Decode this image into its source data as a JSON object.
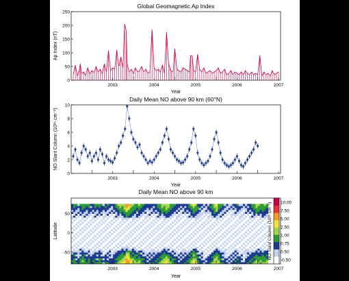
{
  "chart_data": [
    {
      "type": "line",
      "title": "Global Geomagnetic Ap Index",
      "xlabel": "Year",
      "ylabel": "Ap Index (nT)",
      "ylim": [
        0,
        250
      ],
      "xlim": [
        2002.5,
        2007.55
      ],
      "x_ticks": [
        "2003",
        "2004",
        "2005",
        "2006",
        "2007"
      ],
      "y_ticks": [
        "0",
        "50",
        "100",
        "150",
        "200",
        "250"
      ],
      "color": "#c8004a",
      "series": [
        {
          "x": [
            2002.55,
            2002.6,
            2002.65,
            2002.7,
            2002.72,
            2002.75,
            2002.8,
            2002.85,
            2002.9,
            2002.95,
            2003.0,
            2003.05,
            2003.1,
            2003.15,
            2003.2,
            2003.25,
            2003.3,
            2003.35,
            2003.4,
            2003.45,
            2003.5,
            2003.55,
            2003.6,
            2003.65,
            2003.7,
            2003.75,
            2003.79,
            2003.83,
            2003.85,
            2003.9,
            2003.95,
            2004.0,
            2004.05,
            2004.1,
            2004.15,
            2004.2,
            2004.25,
            2004.3,
            2004.35,
            2004.4,
            2004.45,
            2004.5,
            2004.55,
            2004.6,
            2004.65,
            2004.7,
            2004.75,
            2004.8,
            2004.85,
            2004.88,
            2004.92,
            2004.96,
            2005.0,
            2005.05,
            2005.1,
            2005.15,
            2005.2,
            2005.25,
            2005.3,
            2005.35,
            2005.38,
            2005.42,
            2005.45,
            2005.5,
            2005.55,
            2005.6,
            2005.65,
            2005.7,
            2005.75,
            2005.8,
            2005.85,
            2005.9,
            2005.95,
            2006.0,
            2006.05,
            2006.1,
            2006.15,
            2006.2,
            2006.25,
            2006.3,
            2006.35,
            2006.4,
            2006.45,
            2006.5,
            2006.55,
            2006.6,
            2006.65,
            2006.7,
            2006.75,
            2006.8,
            2006.85,
            2006.9,
            2006.95,
            2007.0,
            2007.05,
            2007.1,
            2007.15,
            2007.2,
            2007.25,
            2007.3,
            2007.35,
            2007.4,
            2007.45,
            2007.5
          ],
          "y": [
            20,
            55,
            15,
            40,
            60,
            25,
            30,
            18,
            45,
            22,
            35,
            28,
            50,
            30,
            40,
            25,
            60,
            30,
            108,
            35,
            45,
            40,
            110,
            50,
            85,
            45,
            205,
            178,
            60,
            30,
            40,
            25,
            45,
            30,
            35,
            50,
            30,
            40,
            25,
            30,
            185,
            45,
            35,
            40,
            30,
            55,
            25,
            175,
            60,
            45,
            30,
            35,
            115,
            40,
            35,
            30,
            45,
            40,
            35,
            30,
            90,
            88,
            35,
            30,
            95,
            40,
            30,
            45,
            25,
            30,
            35,
            25,
            30,
            35,
            45,
            25,
            30,
            40,
            20,
            25,
            35,
            20,
            30,
            25,
            20,
            30,
            20,
            35,
            25,
            20,
            30,
            20,
            25,
            20,
            90,
            15,
            30,
            20,
            25,
            15,
            35,
            20,
            25,
            30
          ]
        }
      ]
    },
    {
      "type": "scatter",
      "title": "Daily Mean NO above 90 km (60°N)",
      "xlabel": "Year",
      "ylabel": "NO Slant Column (10¹⁶ cm⁻²)",
      "ylim": [
        0,
        10
      ],
      "xlim": [
        2002.5,
        2007.55
      ],
      "x_ticks": [
        "2003",
        "2004",
        "2005",
        "2006",
        "2007"
      ],
      "y_ticks": [
        "0",
        "2",
        "4",
        "6",
        "8",
        "10"
      ],
      "color": "#1f3c8c",
      "series": [
        {
          "x": [
            2002.55,
            2002.6,
            2002.65,
            2002.7,
            2002.75,
            2002.8,
            2002.85,
            2002.9,
            2002.95,
            2003.0,
            2003.05,
            2003.1,
            2003.15,
            2003.2,
            2003.25,
            2003.3,
            2003.35,
            2003.4,
            2003.45,
            2003.5,
            2003.55,
            2003.6,
            2003.65,
            2003.7,
            2003.75,
            2003.8,
            2003.85,
            2003.9,
            2003.95,
            2004.0,
            2004.05,
            2004.1,
            2004.15,
            2004.2,
            2004.25,
            2004.3,
            2004.35,
            2004.4,
            2004.45,
            2004.5,
            2004.55,
            2004.6,
            2004.65,
            2004.7,
            2004.75,
            2004.8,
            2004.85,
            2004.9,
            2004.95,
            2005.0,
            2005.05,
            2005.1,
            2005.15,
            2005.2,
            2005.25,
            2005.3,
            2005.35,
            2005.4,
            2005.45,
            2005.5,
            2005.55,
            2005.6,
            2005.65,
            2005.7,
            2005.75,
            2005.8,
            2005.85,
            2005.9,
            2005.95,
            2006.0,
            2006.05,
            2006.1,
            2006.15,
            2006.2,
            2006.25,
            2006.3,
            2006.35,
            2006.4,
            2006.45,
            2006.5,
            2006.55,
            2006.6,
            2006.65,
            2006.7,
            2006.75,
            2006.8,
            2006.85,
            2006.9,
            2006.95,
            2007.0
          ],
          "y": [
            2.5,
            3.5,
            2.0,
            1.5,
            3.0,
            4.0,
            3.5,
            2.5,
            3.0,
            1.8,
            2.5,
            3.0,
            2.0,
            3.5,
            2.8,
            1.5,
            2.5,
            2.0,
            1.8,
            1.6,
            2.2,
            3.0,
            4.0,
            4.5,
            5.5,
            6.5,
            9.8,
            8.0,
            6.0,
            5.0,
            4.5,
            3.8,
            4.2,
            3.0,
            2.5,
            2.0,
            1.5,
            1.8,
            1.6,
            2.0,
            2.5,
            3.0,
            3.5,
            4.5,
            5.5,
            6.5,
            5.0,
            3.5,
            3.0,
            2.5,
            2.0,
            1.8,
            1.5,
            1.6,
            2.0,
            2.5,
            3.5,
            4.5,
            6.5,
            5.5,
            3.0,
            2.0,
            1.5,
            1.2,
            1.5,
            1.8,
            2.5,
            3.5,
            5.0,
            6.0,
            4.5,
            3.0,
            2.0,
            1.5,
            1.2,
            1.0,
            1.2,
            1.5,
            2.0,
            2.5,
            1.8,
            1.2,
            1.0,
            1.5,
            2.0,
            2.5,
            3.0,
            3.5,
            4.5,
            4.0
          ]
        }
      ]
    },
    {
      "type": "heatmap",
      "title": "Daily Mean NO above 90 km",
      "xlabel": "Year",
      "ylabel": "Latitude",
      "ylim": [
        -80,
        90
      ],
      "xlim": [
        2002.5,
        2007.55
      ],
      "x_ticks": [
        "2003",
        "2004",
        "2005",
        "2006",
        "2007"
      ],
      "y_ticks": [
        "-50",
        "0",
        "50"
      ],
      "colorbar": {
        "label": "NO Slant Column (10¹⁶ cm⁻²)",
        "ticks": [
          "-0.50",
          "0.50",
          "0.75",
          "1.00",
          "2.50",
          "5.00",
          "7.50",
          "10.00"
        ],
        "colors": [
          "#ffffff",
          "#c6d3ec",
          "#1d3b8e",
          "#2e9a3a",
          "#a6d64b",
          "#f2e43c",
          "#f39a2a",
          "#e8303c",
          "#c8004a"
        ]
      }
    }
  ]
}
